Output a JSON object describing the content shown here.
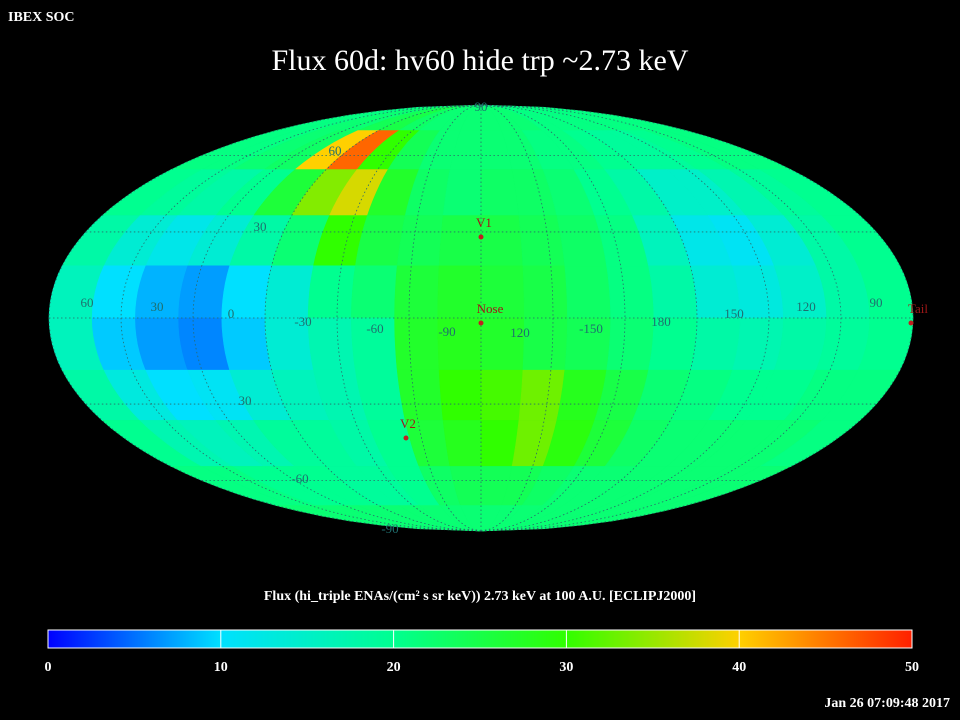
{
  "header": "IBEX SOC",
  "chart_data": {
    "type": "mollweide_heatmap",
    "title": "Flux   60d: hv60 hide trp ~2.73 keV",
    "values": [
      [
        21,
        21,
        22,
        22,
        24,
        25,
        23,
        22,
        22,
        22,
        22,
        22,
        22,
        21,
        21,
        21,
        21,
        21,
        21,
        21
      ],
      [
        21,
        21,
        22,
        23,
        40,
        46,
        30,
        24,
        22,
        22,
        22,
        22,
        21,
        21,
        20,
        19,
        19,
        20,
        21,
        21
      ],
      [
        20,
        19,
        18,
        20,
        26,
        34,
        38,
        27,
        23,
        22,
        23,
        23,
        22,
        20,
        18,
        15,
        15,
        17,
        19,
        20
      ],
      [
        18,
        14,
        12,
        14,
        18,
        22,
        30,
        25,
        24,
        25,
        25,
        24,
        23,
        21,
        16,
        12,
        11,
        14,
        18,
        20
      ],
      [
        16,
        10,
        8,
        7,
        10,
        14,
        20,
        22,
        26,
        27,
        26,
        25,
        23,
        21,
        18,
        14,
        13,
        15,
        18,
        20
      ],
      [
        16,
        9,
        7,
        6,
        9,
        14,
        17,
        19,
        27,
        28,
        27,
        25,
        24,
        22,
        20,
        18,
        17,
        18,
        19,
        20
      ],
      [
        18,
        13,
        10,
        11,
        14,
        16,
        17,
        19,
        27,
        30,
        31,
        33,
        28,
        25,
        22,
        21,
        20,
        20,
        21,
        21
      ],
      [
        20,
        17,
        16,
        17,
        19,
        19,
        18,
        20,
        26,
        28,
        30,
        33,
        29,
        26,
        23,
        22,
        22,
        22,
        22,
        21
      ],
      [
        21,
        21,
        20,
        20,
        20,
        19,
        19,
        20,
        23,
        24,
        24,
        24,
        23,
        22,
        22,
        22,
        22,
        22,
        22,
        22
      ],
      [
        22,
        22,
        22,
        22,
        22,
        22,
        22,
        22,
        22,
        22,
        22,
        22,
        22,
        22,
        22,
        22,
        22,
        22,
        22,
        22
      ]
    ],
    "graticule_labels": [
      "90",
      "60",
      "30",
      "30",
      "-60",
      "-90",
      "60",
      "30",
      "0",
      "-30",
      "-60",
      "-90",
      "120",
      "-150",
      "180",
      "150",
      "120",
      "90"
    ],
    "markers": [
      "V1",
      "Nose",
      "V2",
      "Tail"
    ],
    "colorbar": {
      "label": "Flux (hi_triple ENAs/(cm² s sr keV))  2.73 keV at 100 A.U. [ECLIPJ2000]",
      "lim": [
        0,
        50
      ],
      "ticks": [
        0,
        10,
        20,
        30,
        40,
        50
      ],
      "colors": [
        "#0000ff",
        "#00e0ff",
        "#00ff90",
        "#30ff00",
        "#ffd000",
        "#ff2000"
      ]
    }
  },
  "timestamp": "Jan 26 07:09:48 2017"
}
